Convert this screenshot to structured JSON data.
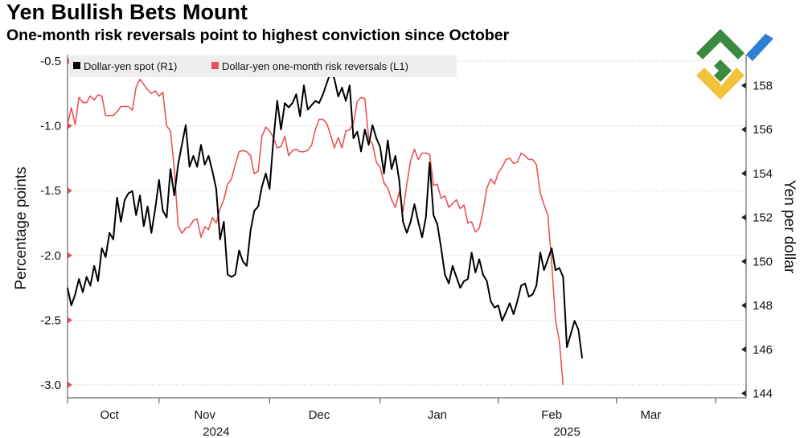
{
  "title": "Yen Bullish Bets Mount",
  "subtitle": "One-month risk reversals point to highest conviction since October",
  "colors": {
    "spot": "#000000",
    "rr": "#e8545a",
    "grid": "#c8c8c8",
    "axis": "#444444",
    "legend_bg": "#eeeeee"
  },
  "chart_data": {
    "type": "line",
    "title": "Yen Bullish Bets Mount",
    "subtitle": "One-month risk reversals point to highest conviction since October",
    "ylabel_left": "Percentage points",
    "ylabel_right": "Yen per dollar",
    "ylim_left": [
      -3.1,
      -0.45
    ],
    "ylim_right": [
      143.8,
      159.4
    ],
    "yticks_left": [
      "-0.5",
      "-1.0",
      "-1.5",
      "-2.0",
      "-2.5",
      "-3.0"
    ],
    "yticks_left_values": [
      -0.5,
      -1.0,
      -1.5,
      -2.0,
      -2.5,
      -3.0
    ],
    "yticks_right": [
      "158",
      "156",
      "154",
      "152",
      "150",
      "148",
      "146",
      "144"
    ],
    "yticks_right_values": [
      158,
      156,
      154,
      152,
      150,
      148,
      146,
      144
    ],
    "xlim": [
      0,
      178
    ],
    "xticks": [
      {
        "label": "Oct",
        "x": 11
      },
      {
        "label": "Nov",
        "x": 36
      },
      {
        "label": "Dec",
        "x": 66
      },
      {
        "label": "Jan",
        "x": 97
      },
      {
        "label": "Feb",
        "x": 127
      },
      {
        "label": "Mar",
        "x": 153
      }
    ],
    "xtick_separators": [
      0,
      24,
      53,
      82,
      113,
      144,
      170
    ],
    "year_labels": [
      {
        "label": "2024",
        "x": 39
      },
      {
        "label": "2025",
        "x": 131
      }
    ],
    "series": [
      {
        "name": "Dollar-yen spot (R1)",
        "axis": "right",
        "color": "#000000",
        "points": [
          [
            0,
            148.8
          ],
          [
            1,
            148.0
          ],
          [
            2,
            148.5
          ],
          [
            3,
            149.2
          ],
          [
            4,
            148.6
          ],
          [
            5,
            149.3
          ],
          [
            6,
            148.9
          ],
          [
            7,
            149.8
          ],
          [
            8,
            149.1
          ],
          [
            9,
            150.6
          ],
          [
            10,
            150.2
          ],
          [
            11,
            151.3
          ],
          [
            12,
            151.0
          ],
          [
            13,
            152.9
          ],
          [
            14,
            151.8
          ],
          [
            15,
            152.8
          ],
          [
            16,
            153.1
          ],
          [
            17,
            153.2
          ],
          [
            18,
            152.1
          ],
          [
            19,
            153.0
          ],
          [
            20,
            151.6
          ],
          [
            21,
            152.5
          ],
          [
            22,
            151.3
          ],
          [
            23,
            152.4
          ],
          [
            24,
            153.7
          ],
          [
            25,
            152.3
          ],
          [
            26,
            152.0
          ],
          [
            27,
            154.2
          ],
          [
            28,
            153.0
          ],
          [
            29,
            154.4
          ],
          [
            30,
            155.3
          ],
          [
            31,
            156.2
          ],
          [
            32,
            154.3
          ],
          [
            33,
            154.8
          ],
          [
            34,
            154.3
          ],
          [
            35,
            155.3
          ],
          [
            36,
            154.4
          ],
          [
            37,
            154.8
          ],
          [
            38,
            154.1
          ],
          [
            39,
            153.3
          ],
          [
            40,
            151.0
          ],
          [
            41,
            151.8
          ],
          [
            42,
            149.4
          ],
          [
            43,
            149.3
          ],
          [
            44,
            149.4
          ],
          [
            45,
            150.5
          ],
          [
            46,
            150.0
          ],
          [
            47,
            149.8
          ],
          [
            48,
            151.4
          ],
          [
            49,
            152.3
          ],
          [
            50,
            152.5
          ],
          [
            51,
            153.4
          ],
          [
            52,
            154.0
          ],
          [
            53,
            153.3
          ],
          [
            54,
            155.5
          ],
          [
            55,
            157.3
          ],
          [
            56,
            156.0
          ],
          [
            57,
            157.2
          ],
          [
            58,
            157.0
          ],
          [
            59,
            157.2
          ],
          [
            60,
            157.6
          ],
          [
            61,
            156.6
          ],
          [
            62,
            158.0
          ],
          [
            63,
            156.9
          ],
          [
            64,
            157.1
          ],
          [
            65,
            157.3
          ],
          [
            66,
            157.2
          ],
          [
            67,
            157.6
          ],
          [
            68,
            158.1
          ],
          [
            69,
            158.6
          ],
          [
            70,
            158.3
          ],
          [
            71,
            157.5
          ],
          [
            72,
            157.9
          ],
          [
            73,
            157.3
          ],
          [
            74,
            158.0
          ],
          [
            75,
            155.6
          ],
          [
            76,
            155.9
          ],
          [
            77,
            155.0
          ],
          [
            78,
            156.0
          ],
          [
            79,
            155.3
          ],
          [
            80,
            156.2
          ],
          [
            81,
            155.6
          ],
          [
            82,
            155.2
          ],
          [
            83,
            154.0
          ],
          [
            84,
            155.5
          ],
          [
            85,
            154.2
          ],
          [
            86,
            154.8
          ],
          [
            87,
            153.7
          ],
          [
            88,
            151.8
          ],
          [
            89,
            151.3
          ],
          [
            90,
            151.8
          ],
          [
            91,
            152.6
          ],
          [
            92,
            151.8
          ],
          [
            93,
            151.1
          ],
          [
            94,
            152.0
          ],
          [
            95,
            154.5
          ],
          [
            96,
            152.1
          ],
          [
            97,
            151.7
          ],
          [
            98,
            150.6
          ],
          [
            99,
            149.4
          ],
          [
            100,
            149.0
          ],
          [
            101,
            149.8
          ],
          [
            102,
            149.3
          ],
          [
            103,
            148.8
          ],
          [
            104,
            149.1
          ],
          [
            105,
            149.2
          ],
          [
            106,
            150.4
          ],
          [
            107,
            149.5
          ],
          [
            108,
            150.1
          ],
          [
            109,
            149.4
          ],
          [
            110,
            149.1
          ],
          [
            111,
            148.2
          ],
          [
            112,
            147.9
          ],
          [
            113,
            148.0
          ],
          [
            114,
            147.3
          ],
          [
            115,
            147.7
          ],
          [
            116,
            148.1
          ],
          [
            117,
            147.6
          ],
          [
            118,
            148.2
          ],
          [
            119,
            148.9
          ],
          [
            120,
            149.0
          ],
          [
            121,
            148.4
          ],
          [
            122,
            148.5
          ],
          [
            123,
            148.9
          ],
          [
            124,
            150.4
          ],
          [
            125,
            149.6
          ],
          [
            126,
            150.1
          ],
          [
            127,
            150.6
          ],
          [
            128,
            149.6
          ],
          [
            129,
            149.7
          ],
          [
            130,
            149.3
          ],
          [
            131,
            146.1
          ],
          [
            132,
            146.7
          ],
          [
            133,
            147.3
          ],
          [
            134,
            146.9
          ],
          [
            135,
            145.6
          ]
        ]
      },
      {
        "name": "Dollar-yen one-month risk reversals (L1)",
        "axis": "left",
        "color": "#e8545a",
        "points": [
          [
            0,
            -0.99
          ],
          [
            1,
            -0.86
          ],
          [
            2,
            -0.99
          ],
          [
            3,
            -0.78
          ],
          [
            4,
            -0.82
          ],
          [
            5,
            -0.82
          ],
          [
            6,
            -0.77
          ],
          [
            7,
            -0.8
          ],
          [
            8,
            -0.76
          ],
          [
            9,
            -0.77
          ],
          [
            10,
            -0.92
          ],
          [
            11,
            -0.92
          ],
          [
            12,
            -0.92
          ],
          [
            13,
            -0.89
          ],
          [
            14,
            -0.85
          ],
          [
            15,
            -0.85
          ],
          [
            16,
            -0.85
          ],
          [
            17,
            -0.88
          ],
          [
            18,
            -0.7
          ],
          [
            19,
            -0.64
          ],
          [
            20,
            -0.68
          ],
          [
            21,
            -0.72
          ],
          [
            22,
            -0.75
          ],
          [
            23,
            -0.73
          ],
          [
            24,
            -0.77
          ],
          [
            25,
            -0.74
          ],
          [
            26,
            -1.0
          ],
          [
            27,
            -1.04
          ],
          [
            28,
            -1.33
          ],
          [
            29,
            -1.77
          ],
          [
            30,
            -1.83
          ],
          [
            31,
            -1.79
          ],
          [
            32,
            -1.78
          ],
          [
            33,
            -1.73
          ],
          [
            34,
            -1.72
          ],
          [
            35,
            -1.86
          ],
          [
            36,
            -1.78
          ],
          [
            37,
            -1.8
          ],
          [
            38,
            -1.71
          ],
          [
            39,
            -1.75
          ],
          [
            40,
            -1.64
          ],
          [
            41,
            -1.57
          ],
          [
            42,
            -1.45
          ],
          [
            43,
            -1.41
          ],
          [
            44,
            -1.3
          ],
          [
            45,
            -1.2
          ],
          [
            46,
            -1.19
          ],
          [
            47,
            -1.2
          ],
          [
            48,
            -1.23
          ],
          [
            49,
            -1.37
          ],
          [
            50,
            -1.35
          ],
          [
            51,
            -1.08
          ],
          [
            52,
            -1.01
          ],
          [
            53,
            -1.04
          ],
          [
            54,
            -1.09
          ],
          [
            55,
            -1.17
          ],
          [
            56,
            -1.16
          ],
          [
            57,
            -1.08
          ],
          [
            58,
            -1.23
          ],
          [
            59,
            -1.19
          ],
          [
            60,
            -1.18
          ],
          [
            61,
            -1.2
          ],
          [
            62,
            -1.2
          ],
          [
            63,
            -1.19
          ],
          [
            64,
            -1.15
          ],
          [
            65,
            -1.03
          ],
          [
            66,
            -0.95
          ],
          [
            67,
            -0.95
          ],
          [
            68,
            -0.98
          ],
          [
            69,
            -1.07
          ],
          [
            70,
            -1.17
          ],
          [
            71,
            -1.09
          ],
          [
            72,
            -1.17
          ],
          [
            73,
            -1.04
          ],
          [
            74,
            -1.03
          ],
          [
            75,
            -0.98
          ],
          [
            76,
            -0.81
          ],
          [
            77,
            -0.78
          ],
          [
            78,
            -0.79
          ],
          [
            79,
            -1.1
          ],
          [
            80,
            -1.14
          ],
          [
            81,
            -1.28
          ],
          [
            82,
            -1.32
          ],
          [
            83,
            -1.44
          ],
          [
            84,
            -1.48
          ],
          [
            85,
            -1.57
          ],
          [
            86,
            -1.63
          ],
          [
            87,
            -1.51
          ],
          [
            88,
            -1.66
          ],
          [
            89,
            -1.45
          ],
          [
            90,
            -1.27
          ],
          [
            91,
            -1.18
          ],
          [
            92,
            -1.26
          ],
          [
            93,
            -1.21
          ],
          [
            94,
            -1.21
          ],
          [
            95,
            -1.22
          ],
          [
            96,
            -1.46
          ],
          [
            97,
            -1.45
          ],
          [
            98,
            -1.56
          ],
          [
            99,
            -1.54
          ],
          [
            100,
            -1.63
          ],
          [
            101,
            -1.6
          ],
          [
            102,
            -1.57
          ],
          [
            103,
            -1.64
          ],
          [
            104,
            -1.61
          ],
          [
            105,
            -1.75
          ],
          [
            106,
            -1.74
          ],
          [
            107,
            -1.82
          ],
          [
            108,
            -1.79
          ],
          [
            109,
            -1.66
          ],
          [
            110,
            -1.48
          ],
          [
            111,
            -1.41
          ],
          [
            112,
            -1.45
          ],
          [
            113,
            -1.36
          ],
          [
            114,
            -1.32
          ],
          [
            115,
            -1.26
          ],
          [
            116,
            -1.25
          ],
          [
            117,
            -1.29
          ],
          [
            118,
            -1.28
          ],
          [
            119,
            -1.21
          ],
          [
            120,
            -1.23
          ],
          [
            121,
            -1.26
          ],
          [
            122,
            -1.26
          ],
          [
            123,
            -1.3
          ],
          [
            124,
            -1.52
          ],
          [
            125,
            -1.61
          ],
          [
            126,
            -1.69
          ],
          [
            127,
            -2.06
          ],
          [
            128,
            -2.5
          ],
          [
            129,
            -2.66
          ],
          [
            130,
            -3.0
          ]
        ]
      }
    ]
  }
}
